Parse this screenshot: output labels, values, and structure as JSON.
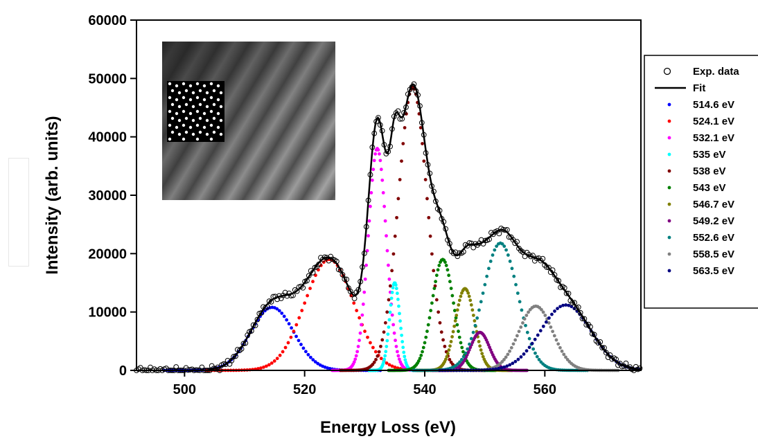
{
  "chart_data": {
    "type": "line",
    "xlabel": "Energy Loss (eV)",
    "ylabel": "Intensity (arb. units)",
    "xlim": [
      492,
      576
    ],
    "ylim": [
      0,
      60000
    ],
    "x_ticks": [
      500,
      520,
      540,
      560
    ],
    "y_ticks": [
      0,
      10000,
      20000,
      30000,
      40000,
      50000,
      60000
    ],
    "grid": false,
    "legend_position": "right",
    "legend": {
      "exp_label": "Exp. data",
      "fit_label": "Fit"
    },
    "baseline_onset": 504,
    "end_point": 576,
    "components": [
      {
        "name": "514.6 eV",
        "center": 514.6,
        "amplitude": 10800,
        "sigma": 3.6,
        "color": "#0000ff"
      },
      {
        "name": "524.1 eV",
        "center": 524.1,
        "amplitude": 19000,
        "sigma": 4.1,
        "color": "#ff0000"
      },
      {
        "name": "532.1 eV",
        "center": 532.1,
        "amplitude": 38000,
        "sigma": 1.5,
        "color": "#ff00ff"
      },
      {
        "name": "535 eV",
        "center": 535.0,
        "amplitude": 15000,
        "sigma": 0.85,
        "color": "#00ffff"
      },
      {
        "name": "538 eV",
        "center": 538.0,
        "amplitude": 48500,
        "sigma": 2.4,
        "color": "#800000"
      },
      {
        "name": "543 eV",
        "center": 543.0,
        "amplitude": 19000,
        "sigma": 1.8,
        "color": "#008000"
      },
      {
        "name": "546.7 eV",
        "center": 546.7,
        "amplitude": 14000,
        "sigma": 1.6,
        "color": "#808000"
      },
      {
        "name": "549.2 eV",
        "center": 549.2,
        "amplitude": 6500,
        "sigma": 1.6,
        "color": "#800080"
      },
      {
        "name": "552.6 eV",
        "center": 552.6,
        "amplitude": 21800,
        "sigma": 2.9,
        "color": "#008080"
      },
      {
        "name": "558.5 eV",
        "center": 558.5,
        "amplitude": 11000,
        "sigma": 2.8,
        "color": "#808080"
      },
      {
        "name": "563.5 eV",
        "center": 563.5,
        "amplitude": 11200,
        "sigma": 4.2,
        "color": "#000080"
      }
    ]
  }
}
